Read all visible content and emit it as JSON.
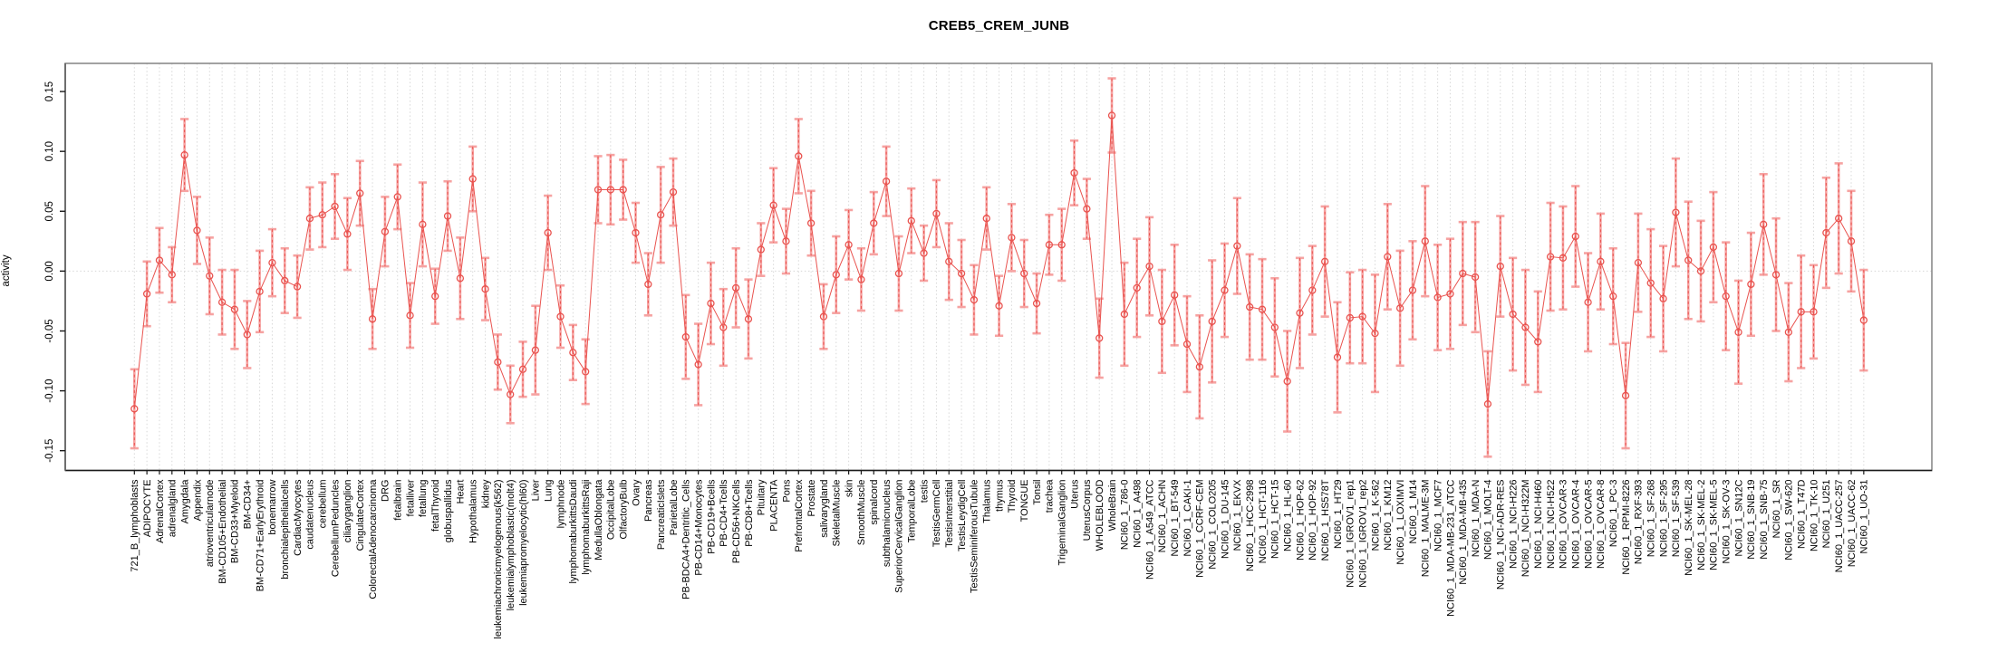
{
  "chart": {
    "title": "CREB5_CREM_JUNB",
    "ylabel": "activity"
  },
  "chart_data": {
    "type": "line",
    "subtype": "points-with-error-bars",
    "title": "CREB5_CREM_JUNB",
    "xlabel": "",
    "ylabel": "activity",
    "ylim": [
      -0.1665,
      0.1735
    ],
    "yticks": [
      -0.15,
      -0.1,
      -0.05,
      0.0,
      0.05,
      0.1,
      0.15
    ],
    "grid": "vertical dotted gridline at each category; dotted horizontal line at y=0; full plot box",
    "legend": "none",
    "colors": {
      "series": "#e9534f",
      "errorbar": "#f6a3a2",
      "grid": "#d8d8d8",
      "box": "#8a8a8a",
      "axis": "#1a1a1a",
      "text": "#000000"
    },
    "categories": [
      "721_B_lymphoblasts",
      "ADIPOCYTE",
      "AdrenalCortex",
      "adrenalgland",
      "Amygdala",
      "Appendix",
      "atrioventricularnode",
      "BM-CD105+Endothelial",
      "BM-CD33+Myeloid",
      "BM-CD34+",
      "BM-CD71+EarlyErythroid",
      "bonemarrow",
      "bronchialepithelialcells",
      "CardiacMyocytes",
      "caudatenucleus",
      "cerebellum",
      "CerebellumPeduncles",
      "ciliaryganglion",
      "CingulateCortex",
      "ColorectalAdenocarcinoma",
      "DRG",
      "fetalbrain",
      "fetalliver",
      "fetallung",
      "fetalThyroid",
      "globuspallidus",
      "Heart",
      "Hypothalamus",
      "kidney",
      "leukemiachronicmyelogenous(k562)",
      "leukemialymphoblastic(molt4)",
      "leukemiapromyelocytic(hl60)",
      "Liver",
      "Lung",
      "lymphnode",
      "lymphomaburkittsDaudi",
      "lymphomaburkittsRaji",
      "MedullaOblongata",
      "OccipitalLobe",
      "OlfactoryBulb",
      "Ovary",
      "Pancreas",
      "PancreaticIslets",
      "ParietalLobe",
      "PB-BDCA4+Dentritic_Cells",
      "PB-CD14+Monocytes",
      "PB-CD19+Bcells",
      "PB-CD4+Tcells",
      "PB-CD56+NKCells",
      "PB-CD8+Tcells",
      "Pituitary",
      "PLACENTA",
      "Pons",
      "PrefrontalCortex",
      "Prostate",
      "salivarygland",
      "SkeletalMuscle",
      "skin",
      "SmoothMuscle",
      "spinalcord",
      "subthalamicnucleus",
      "SuperiorCervicalGanglion",
      "TemporalLobe",
      "testis",
      "TestisGermCell",
      "TestisInterstitial",
      "TestisLeydigCell",
      "TestisSeminiferousTubule",
      "Thalamus",
      "thymus",
      "Thyroid",
      "TONGUE",
      "Tonsil",
      "trachea",
      "TrigeminalGanglion",
      "Uterus",
      "UterusCorpus",
      "WHOLEBLOOD",
      "WholeBrain",
      "NCI60_1_786-0",
      "NCI60_1_A498",
      "NCI60_1_A549_ATCC",
      "NCI60_1_ACHN",
      "NCI60_1_BT-549",
      "NCI60_1_CAKI-1",
      "NCI60_1_CCRF-CEM",
      "NCI60_1_COLO205",
      "NCI60_1_DU-145",
      "NCI60_1_EKVX",
      "NCI60_1_HCC-2998",
      "NCI60_1_HCT-116",
      "NCI60_1_HCT-15",
      "NCI60_1_HL-60",
      "NCI60_1_HOP-62",
      "NCI60_1_HOP-92",
      "NCI60_1_HS578T",
      "NCI60_1_HT29",
      "NCI60_1_IGROV1_rep1",
      "NCI60_1_IGROV1_rep2",
      "NCI60_1_K-562",
      "NCI60_1_KM12",
      "NCI60_1_LOXIMVI",
      "NCI60_1_M14",
      "NCI60_1_MALME-3M",
      "NCI60_1_MCF7",
      "NCI60_1_MDA-MB-231_ATCC",
      "NCI60_1_MDA-MB-435",
      "NCI60_1_MDA-N",
      "NCI60_1_MOLT-4",
      "NCI60_1_NCI-ADR-RES",
      "NCI60_1_NCI-H226",
      "NCI60_1_NCI-H322M",
      "NCI60_1_NCI-H460",
      "NCI60_1_NCI-H522",
      "NCI60_1_OVCAR-3",
      "NCI60_1_OVCAR-4",
      "NCI60_1_OVCAR-5",
      "NCI60_1_OVCAR-8",
      "NCI60_1_PC-3",
      "NCI60_1_RPMI-8226",
      "NCI60_1_RXF-393",
      "NCI60_1_SF-268",
      "NCI60_1_SF-295",
      "NCI60_1_SF-539",
      "NCI60_1_SK-MEL-28",
      "NCI60_1_SK-MEL-2",
      "NCI60_1_SK-MEL-5",
      "NCI60_1_SK-OV-3",
      "NCI60_1_SN12C",
      "NCI60_1_SNB-19",
      "NCI60_1_SNB-75",
      "NCI60_1_SR",
      "NCI60_1_SW-620",
      "NCI60_1_T47D",
      "NCI60_1_TK-10",
      "NCI60_1_U251",
      "NCI60_1_UACC-257",
      "NCI60_1_UACC-62",
      "NCI60_1_UO-31"
    ],
    "values": [
      -0.115,
      -0.019,
      0.009,
      -0.003,
      0.097,
      0.034,
      -0.004,
      -0.026,
      -0.032,
      -0.053,
      -0.017,
      0.007,
      -0.008,
      -0.013,
      0.044,
      0.047,
      0.054,
      0.031,
      0.065,
      -0.04,
      0.033,
      0.062,
      -0.037,
      0.039,
      -0.021,
      0.046,
      -0.006,
      0.077,
      -0.015,
      -0.076,
      -0.103,
      -0.082,
      -0.066,
      0.032,
      -0.038,
      -0.068,
      -0.084,
      0.068,
      0.068,
      0.068,
      0.032,
      -0.011,
      0.047,
      0.066,
      -0.055,
      -0.078,
      -0.027,
      -0.047,
      -0.014,
      -0.04,
      0.018,
      0.055,
      0.025,
      0.096,
      0.04,
      -0.038,
      -0.003,
      0.022,
      -0.007,
      0.04,
      0.075,
      -0.002,
      0.042,
      0.015,
      0.048,
      0.008,
      -0.002,
      -0.024,
      0.044,
      -0.029,
      0.028,
      -0.002,
      -0.027,
      0.022,
      0.022,
      0.082,
      0.052,
      -0.056,
      0.13,
      -0.036,
      -0.014,
      0.004,
      -0.042,
      -0.02,
      -0.061,
      -0.08,
      -0.042,
      -0.016,
      0.021,
      -0.03,
      -0.032,
      -0.047,
      -0.092,
      -0.035,
      -0.016,
      0.008,
      -0.072,
      -0.039,
      -0.038,
      -0.052,
      0.012,
      -0.031,
      -0.016,
      0.025,
      -0.022,
      -0.019,
      -0.002,
      -0.005,
      -0.111,
      0.004,
      -0.036,
      -0.047,
      -0.059,
      0.012,
      0.011,
      0.029,
      -0.026,
      0.008,
      -0.021,
      -0.104,
      0.007,
      -0.01,
      -0.023,
      0.049,
      0.009,
      0.0,
      0.02,
      -0.021,
      -0.051,
      -0.011,
      0.039,
      -0.003,
      -0.051,
      -0.034,
      -0.034,
      0.032,
      0.044,
      0.025,
      -0.041
    ],
    "errors": [
      0.033,
      0.027,
      0.027,
      0.023,
      0.03,
      0.028,
      0.032,
      0.027,
      0.033,
      0.028,
      0.034,
      0.028,
      0.027,
      0.026,
      0.026,
      0.027,
      0.027,
      0.03,
      0.027,
      0.025,
      0.029,
      0.027,
      0.027,
      0.035,
      0.023,
      0.029,
      0.034,
      0.027,
      0.026,
      0.023,
      0.024,
      0.023,
      0.037,
      0.031,
      0.026,
      0.023,
      0.027,
      0.028,
      0.029,
      0.025,
      0.025,
      0.026,
      0.04,
      0.028,
      0.035,
      0.034,
      0.034,
      0.032,
      0.033,
      0.033,
      0.022,
      0.031,
      0.027,
      0.031,
      0.027,
      0.027,
      0.032,
      0.029,
      0.026,
      0.026,
      0.029,
      0.031,
      0.027,
      0.023,
      0.028,
      0.032,
      0.028,
      0.029,
      0.026,
      0.025,
      0.028,
      0.028,
      0.025,
      0.025,
      0.03,
      0.027,
      0.025,
      0.033,
      0.031,
      0.043,
      0.041,
      0.041,
      0.043,
      0.042,
      0.04,
      0.043,
      0.051,
      0.039,
      0.04,
      0.044,
      0.042,
      0.041,
      0.042,
      0.046,
      0.037,
      0.046,
      0.046,
      0.038,
      0.039,
      0.049,
      0.044,
      0.048,
      0.041,
      0.046,
      0.044,
      0.046,
      0.043,
      0.046,
      0.044,
      0.042,
      0.047,
      0.048,
      0.042,
      0.045,
      0.043,
      0.042,
      0.041,
      0.04,
      0.04,
      0.044,
      0.041,
      0.045,
      0.044,
      0.045,
      0.049,
      0.042,
      0.046,
      0.045,
      0.043,
      0.043,
      0.042,
      0.047,
      0.041,
      0.047,
      0.039,
      0.046,
      0.046,
      0.042,
      0.042
    ]
  }
}
